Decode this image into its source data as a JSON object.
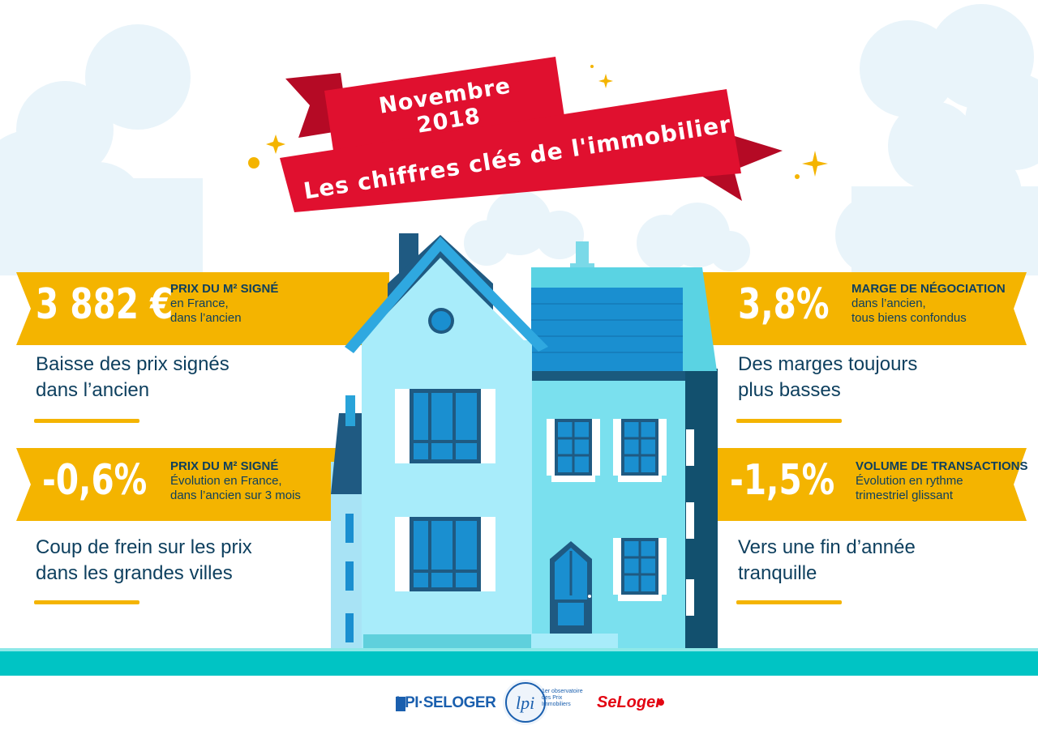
{
  "header": {
    "date_title": "Novembre 2018",
    "main_title": "Les chiffres clés de l'immobilier"
  },
  "stats": [
    {
      "value": "3 882 €",
      "heading": "PRIX DU M² SIGNÉ",
      "sub1": "en France,",
      "sub2": "dans l’ancien",
      "desc1": "Baisse des prix signés",
      "desc2": "dans l’ancien"
    },
    {
      "value": "3,8%",
      "heading": "MARGE DE NÉGOCIATION",
      "sub1": "dans l’ancien,",
      "sub2": "tous biens confondus",
      "desc1": "Des marges toujours",
      "desc2": "plus basses"
    },
    {
      "value": "-0,6%",
      "heading": "PRIX DU M² SIGNÉ",
      "sub1": "Évolution en France,",
      "sub2": "dans l’ancien sur 3 mois",
      "desc1": "Coup de frein sur les prix",
      "desc2": "dans les grandes villes"
    },
    {
      "value": "-1,5%",
      "heading": "VOLUME DE TRANSACTIONS",
      "sub1": "Évolution en rythme",
      "sub2": "trimestriel glissant",
      "desc1": "Vers une fin d’année",
      "desc2": "tranquille"
    }
  ],
  "footer": {
    "logo_lpi_seloger": "LPI·SELOGER",
    "logo_lpi_caption": "1er observatoire des Prix Immobiliers",
    "logo_seloger": "SeLoger"
  },
  "colors": {
    "band": "#f4b400",
    "ribbon": "#e0102f",
    "text_dark": "#0d3f5e",
    "ground": "#00c4c4"
  }
}
